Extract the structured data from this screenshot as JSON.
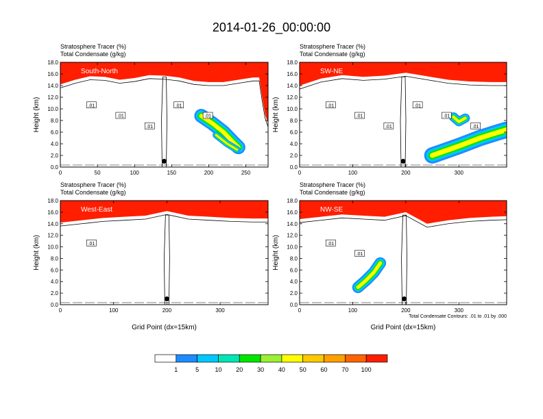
{
  "title": "2014-01-26_00:00:00",
  "colorbar": {
    "levels": [
      "1",
      "5",
      "10",
      "20",
      "30",
      "40",
      "50",
      "60",
      "70",
      "100"
    ],
    "colors": [
      "#ffffff",
      "#1e8cff",
      "#00c8ff",
      "#00e6b4",
      "#00e600",
      "#9bf032",
      "#ffff00",
      "#ffc800",
      "#ffa000",
      "#ff6400",
      "#ff1e00"
    ]
  },
  "chart_data": [
    {
      "type": "heatmap",
      "panel_label": "South-North",
      "title_line1": "Stratosphere Tracer   (%)",
      "title_line2": "Total Condensate   (g/kg)",
      "ylabel": "Height (km)",
      "xlabel": "",
      "xlim": [
        0,
        280
      ],
      "ylim": [
        0,
        18
      ],
      "xticks": [
        "0",
        "50",
        "100",
        "150",
        "200",
        "250"
      ],
      "yticks": [
        "0.0",
        "2.0",
        "4.0",
        "6.0",
        "8.0",
        "10.0",
        "12.0",
        "14.0",
        "16.0",
        "18.0"
      ],
      "contour_labels": [
        ".01",
        ".01",
        ".01",
        ".01",
        ".01"
      ],
      "marker": {
        "x": 140,
        "y": 1.0
      },
      "tropopause": [
        [
          0,
          14.2
        ],
        [
          20,
          15.0
        ],
        [
          40,
          15.6
        ],
        [
          60,
          15.5
        ],
        [
          80,
          15.0
        ],
        [
          100,
          15.3
        ],
        [
          120,
          15.8
        ],
        [
          140,
          15.7
        ],
        [
          160,
          15.4
        ],
        [
          180,
          14.8
        ],
        [
          200,
          14.6
        ],
        [
          220,
          14.6
        ],
        [
          240,
          15.0
        ],
        [
          260,
          15.4
        ],
        [
          268,
          15.4
        ],
        [
          272,
          12.0
        ],
        [
          276,
          9.0
        ],
        [
          280,
          7.5
        ]
      ],
      "cloud_streaks": [
        {
          "points": [
            [
              190,
              8.8
            ],
            [
              205,
              7.5
            ],
            [
              220,
              6.0
            ],
            [
              232,
              4.4
            ],
            [
              240,
              3.4
            ]
          ],
          "width_km": 1.2
        },
        {
          "points": [
            [
              210,
              5.5
            ],
            [
              225,
              4.0
            ],
            [
              238,
              3.0
            ]
          ],
          "width_km": 0.6
        }
      ]
    },
    {
      "type": "heatmap",
      "panel_label": "SW-NE",
      "title_line1": "Stratosphere Tracer   (%)",
      "title_line2": "Total Condensate   (g/kg)",
      "ylabel": "Height (km)",
      "xlabel": "",
      "xlim": [
        0,
        390
      ],
      "ylim": [
        0,
        18
      ],
      "xticks": [
        "0",
        "100",
        "200",
        "300"
      ],
      "yticks": [
        "0.0",
        "2.0",
        "4.0",
        "6.0",
        "8.0",
        "10.0",
        "12.0",
        "14.0",
        "16.0",
        "18.0"
      ],
      "contour_labels": [
        ".01",
        ".01",
        ".01",
        ".01",
        ".01",
        ".01"
      ],
      "marker": {
        "x": 195,
        "y": 1.0
      },
      "tropopause": [
        [
          0,
          14.0
        ],
        [
          40,
          15.2
        ],
        [
          80,
          15.8
        ],
        [
          120,
          15.5
        ],
        [
          160,
          15.7
        ],
        [
          200,
          16.2
        ],
        [
          240,
          15.6
        ],
        [
          280,
          15.0
        ],
        [
          320,
          14.7
        ],
        [
          360,
          14.6
        ],
        [
          390,
          14.6
        ]
      ],
      "cloud_streaks": [
        {
          "points": [
            [
              250,
              2.0
            ],
            [
              300,
              3.6
            ],
            [
              340,
              5.0
            ],
            [
              375,
              6.0
            ],
            [
              390,
              6.4
            ]
          ],
          "width_km": 1.4
        },
        {
          "points": [
            [
              290,
              8.6
            ],
            [
              300,
              7.8
            ],
            [
              312,
              8.4
            ]
          ],
          "width_km": 0.8
        }
      ]
    },
    {
      "type": "heatmap",
      "panel_label": "West-East",
      "title_line1": "Stratosphere Tracer   (%)",
      "title_line2": "Total Condensate   (g/kg)",
      "ylabel": "Height (km)",
      "xlabel": "Grid Point (dx=15km)",
      "xlim": [
        0,
        390
      ],
      "ylim": [
        0,
        18
      ],
      "xticks": [
        "0",
        "100",
        "200",
        "300"
      ],
      "yticks": [
        "0.0",
        "2.0",
        "4.0",
        "6.0",
        "8.0",
        "10.0",
        "12.0",
        "14.0",
        "16.0",
        "18.0"
      ],
      "contour_labels": [
        ".01"
      ],
      "marker": {
        "x": 200,
        "y": 1.0
      },
      "tropopause": [
        [
          0,
          14.2
        ],
        [
          40,
          14.6
        ],
        [
          80,
          15.0
        ],
        [
          120,
          15.2
        ],
        [
          160,
          15.4
        ],
        [
          200,
          16.2
        ],
        [
          240,
          15.4
        ],
        [
          280,
          15.2
        ],
        [
          320,
          15.0
        ],
        [
          360,
          14.9
        ],
        [
          390,
          14.9
        ]
      ],
      "cloud_streaks": []
    },
    {
      "type": "heatmap",
      "panel_label": "NW-SE",
      "title_line1": "Stratosphere Tracer   (%)",
      "title_line2": "Total Condensate   (g/kg)",
      "ylabel": "Height (km)",
      "xlabel": "Grid Point (dx=15km)",
      "xlim": [
        0,
        390
      ],
      "ylim": [
        0,
        18
      ],
      "xticks": [
        "0",
        "100",
        "200",
        "300"
      ],
      "yticks": [
        "0.0",
        "2.0",
        "4.0",
        "6.0",
        "8.0",
        "10.0",
        "12.0",
        "14.0",
        "16.0",
        "18.0"
      ],
      "contour_labels": [
        ".01",
        ".01"
      ],
      "marker": {
        "x": 197,
        "y": 1.0
      },
      "contour_note": "Total Condensate Contours: .01 to .01 by .000",
      "tropopause": [
        [
          0,
          14.8
        ],
        [
          40,
          15.2
        ],
        [
          80,
          15.6
        ],
        [
          120,
          15.4
        ],
        [
          160,
          15.2
        ],
        [
          200,
          16.0
        ],
        [
          240,
          14.0
        ],
        [
          280,
          14.6
        ],
        [
          320,
          15.0
        ],
        [
          360,
          15.2
        ],
        [
          390,
          15.3
        ]
      ],
      "cloud_streaks": [
        {
          "points": [
            [
              110,
              3.0
            ],
            [
              125,
              4.2
            ],
            [
              140,
              5.6
            ],
            [
              152,
              7.2
            ]
          ],
          "width_km": 1.0
        }
      ]
    }
  ]
}
